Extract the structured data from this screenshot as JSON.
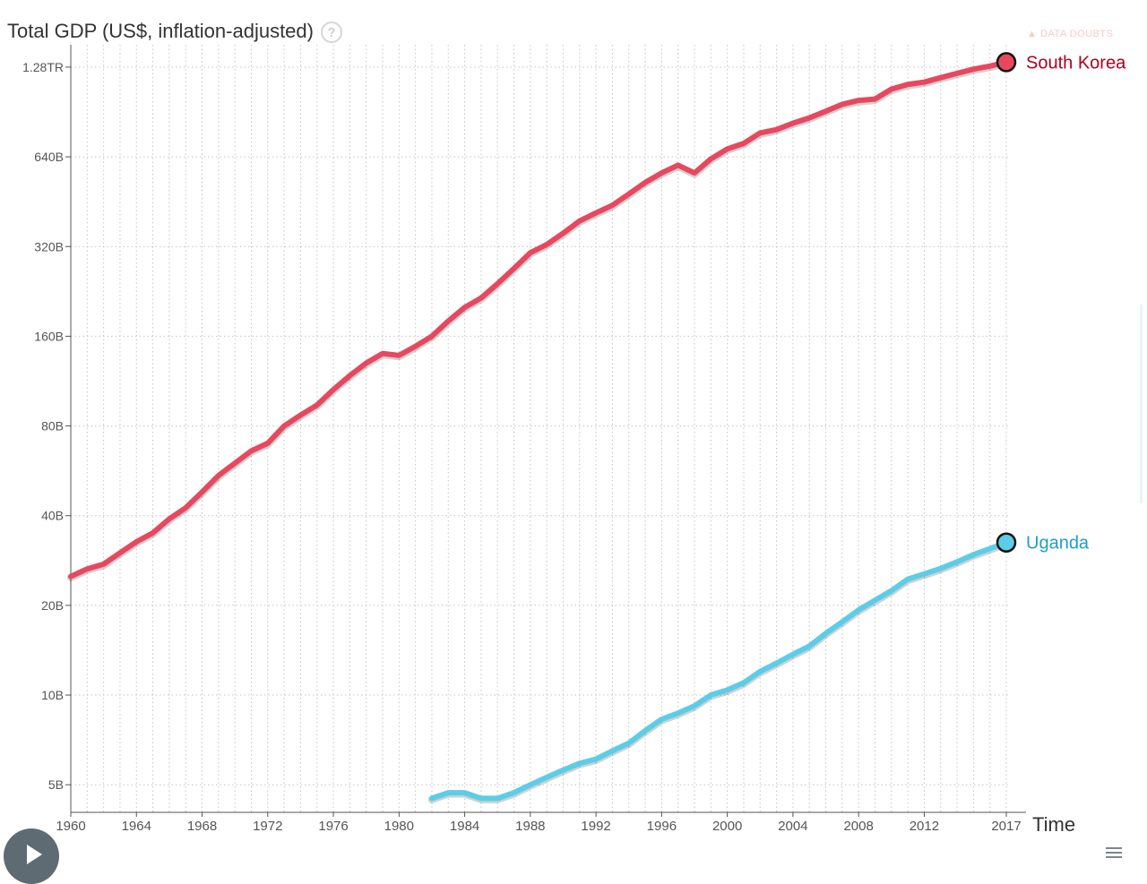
{
  "chart_data": {
    "type": "line",
    "title": "Total GDP (US$, inflation-adjusted)",
    "help_icon_label": "?",
    "data_doubts_label": "DATA DOUBTS",
    "xlabel": "Time",
    "ylabel": "Total GDP (US$, inflation-adjusted)",
    "y_scale": "log",
    "xlim": [
      1960,
      2017
    ],
    "ylim": [
      4300000000,
      1400000000000
    ],
    "x_ticks": [
      1960,
      1964,
      1968,
      1972,
      1976,
      1980,
      1984,
      1988,
      1992,
      1996,
      2000,
      2004,
      2008,
      2012,
      2017
    ],
    "x_tick_labels": [
      "1960",
      "1964",
      "1968",
      "1972",
      "1976",
      "1980",
      "1984",
      "1988",
      "1992",
      "1996",
      "2000",
      "2004",
      "2008",
      "2012",
      "2017"
    ],
    "y_ticks": [
      5000000000,
      10000000000,
      20000000000,
      40000000000,
      80000000000,
      160000000000,
      320000000000,
      640000000000,
      1280000000000
    ],
    "y_tick_labels": [
      "5B",
      "10B",
      "20B",
      "40B",
      "80B",
      "160B",
      "320B",
      "640B",
      "1.28TR"
    ],
    "grid": true,
    "series": [
      {
        "name": "South Korea",
        "color": "#e8485f",
        "label_color": "#b0001a",
        "x": [
          1960,
          1961,
          1962,
          1963,
          1964,
          1965,
          1966,
          1967,
          1968,
          1969,
          1970,
          1971,
          1972,
          1973,
          1974,
          1975,
          1976,
          1977,
          1978,
          1979,
          1980,
          1981,
          1982,
          1983,
          1984,
          1985,
          1986,
          1987,
          1988,
          1989,
          1990,
          1991,
          1992,
          1993,
          1994,
          1995,
          1996,
          1997,
          1998,
          1999,
          2000,
          2001,
          2002,
          2003,
          2004,
          2005,
          2006,
          2007,
          2008,
          2009,
          2010,
          2011,
          2012,
          2013,
          2014,
          2015,
          2016,
          2017
        ],
        "values": [
          25000000000,
          26500000000,
          27500000000,
          30000000000,
          32700000000,
          35000000000,
          39000000000,
          42500000000,
          48000000000,
          54500000000,
          60000000000,
          66000000000,
          70000000000,
          80000000000,
          87000000000,
          94000000000,
          106000000000,
          118000000000,
          130000000000,
          140000000000,
          138000000000,
          148000000000,
          160000000000,
          180000000000,
          200000000000,
          215000000000,
          240000000000,
          270000000000,
          305000000000,
          325000000000,
          355000000000,
          390000000000,
          415000000000,
          440000000000,
          480000000000,
          525000000000,
          565000000000,
          600000000000,
          565000000000,
          630000000000,
          680000000000,
          710000000000,
          770000000000,
          790000000000,
          830000000000,
          865000000000,
          910000000000,
          960000000000,
          990000000000,
          1000000000000,
          1080000000000,
          1120000000000,
          1140000000000,
          1180000000000,
          1220000000000,
          1260000000000,
          1290000000000,
          1330000000000
        ]
      },
      {
        "name": "Uganda",
        "color": "#5ccde8",
        "label_color": "#1f9ec7",
        "x": [
          1982,
          1983,
          1984,
          1985,
          1986,
          1987,
          1988,
          1989,
          1990,
          1991,
          1992,
          1993,
          1994,
          1995,
          1996,
          1997,
          1998,
          1999,
          2000,
          2001,
          2002,
          2003,
          2004,
          2005,
          2006,
          2007,
          2008,
          2009,
          2010,
          2011,
          2012,
          2013,
          2014,
          2015,
          2016,
          2017
        ],
        "values": [
          4500000000,
          4700000000,
          4700000000,
          4500000000,
          4500000000,
          4700000000,
          5000000000,
          5300000000,
          5600000000,
          5900000000,
          6100000000,
          6500000000,
          6900000000,
          7600000000,
          8300000000,
          8700000000,
          9200000000,
          10000000000,
          10400000000,
          11000000000,
          12000000000,
          12800000000,
          13700000000,
          14600000000,
          16100000000,
          17600000000,
          19300000000,
          20800000000,
          22400000000,
          24500000000,
          25500000000,
          26600000000,
          28000000000,
          29600000000,
          31000000000,
          32500000000
        ]
      }
    ]
  }
}
